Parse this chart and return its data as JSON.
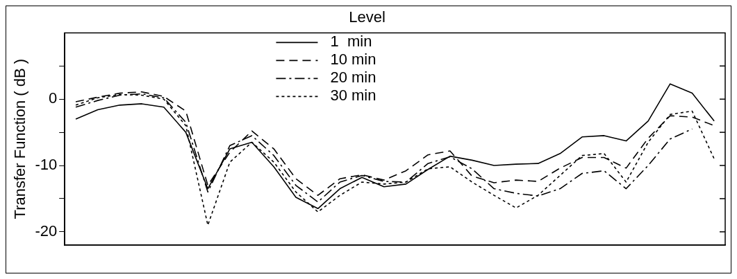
{
  "chart_data": {
    "type": "line",
    "title": "Level",
    "ylabel": "Transfer Function ( dB )",
    "categories": [
      null,
      null,
      null,
      null,
      null,
      null,
      null,
      null,
      null,
      null,
      null,
      null,
      null,
      null,
      null,
      null,
      null,
      null,
      null,
      null,
      null,
      null,
      null,
      null,
      null,
      null,
      null,
      null,
      null,
      null
    ],
    "series": [
      {
        "name": "1  min",
        "color": "#000000",
        "line_style": "solid",
        "values": [
          -3.0,
          -1.6,
          -0.9,
          -0.7,
          -1.2,
          -5,
          -13.5,
          -7.5,
          -6.5,
          -10.2,
          -14.8,
          -16.5,
          -13.5,
          -11.8,
          -13.2,
          -12.8,
          -10.6,
          -8.6,
          -9.2,
          -10,
          -9.8,
          -9.7,
          -8.2,
          -5.7,
          -5.5,
          -6.3,
          -3.3,
          2.3,
          0.9,
          -3.3
        ]
      },
      {
        "name": "10 min",
        "color": "#000000",
        "line_style": "dashed",
        "values": [
          -0.4,
          0.3,
          0.9,
          1.1,
          0.4,
          -1.8,
          -13,
          -8,
          -4.8,
          -7.5,
          -12,
          -14.5,
          -12,
          -11.4,
          -12.2,
          -10.8,
          -8.4,
          -7.8,
          -11.6,
          -12.6,
          -12.2,
          -12.4,
          -10.4,
          -8.8,
          -8.8,
          -10.4,
          -5.9,
          -2.5,
          -2.7,
          -4
        ]
      },
      {
        "name": "20 min",
        "color": "#000000",
        "line_style": "dashdot",
        "values": [
          -1.2,
          -0.2,
          0.6,
          0.8,
          0.2,
          -3.5,
          -14,
          -7,
          -5.5,
          -8.5,
          -13,
          -15.5,
          -12.5,
          -11.5,
          -12.4,
          -12.5,
          -9.7,
          -8.7,
          -10.5,
          -13.5,
          -14.2,
          -14.6,
          -13.5,
          -11.2,
          -10.8,
          -13.5,
          -10,
          -6,
          -4.5,
          null
        ]
      },
      {
        "name": "30 min",
        "color": "#000000",
        "line_style": "dotted",
        "values": [
          -0.9,
          0.2,
          0.7,
          0.6,
          0,
          -4,
          -19,
          -9.5,
          -6.5,
          -9.5,
          -14,
          -17,
          -14.5,
          -12.5,
          -12.8,
          -12.5,
          -10.5,
          -10.2,
          -12.5,
          -14.5,
          -16.4,
          -14.5,
          -11.5,
          -8.5,
          -8.2,
          -12.5,
          -6.5,
          -2.3,
          -1.8,
          -9
        ]
      }
    ],
    "ylim": [
      -22,
      10
    ],
    "yticks": [
      -20,
      {
        "value": -15,
        "label": null
      },
      -10,
      {
        "value": -5,
        "label": null
      },
      0,
      {
        "value": 5,
        "label": null
      }
    ],
    "grid": false,
    "legend": "top",
    "marker": "none"
  }
}
